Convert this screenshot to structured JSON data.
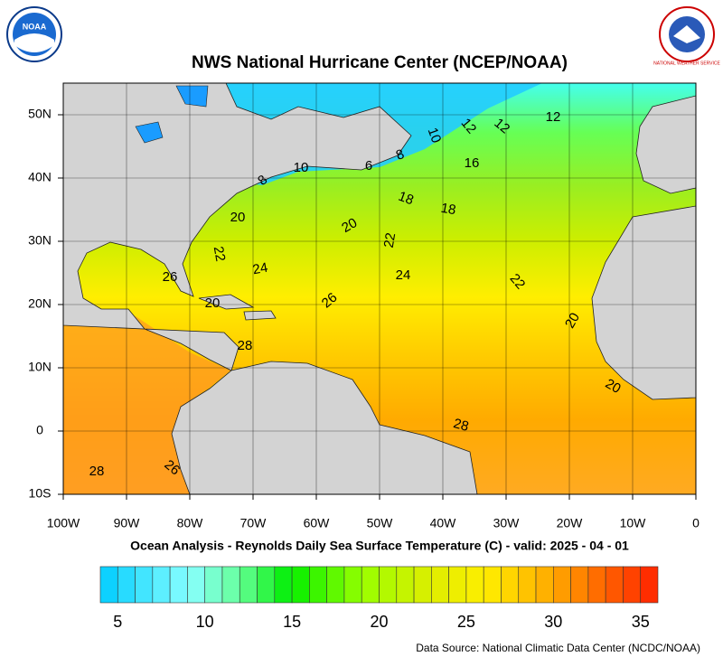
{
  "header": {
    "title": "NWS National Hurricane Center (NCEP/NOAA)",
    "logo_left": "NOAA",
    "logo_right": "NATIONAL WEATHER SERVICE"
  },
  "map": {
    "lon_labels": [
      "100W",
      "90W",
      "80W",
      "70W",
      "60W",
      "50W",
      "40W",
      "30W",
      "20W",
      "10W",
      "0"
    ],
    "lat_labels": [
      "50N",
      "40N",
      "30N",
      "20N",
      "10N",
      "0",
      "10S"
    ],
    "contour_labels": [
      "10",
      "12",
      "12",
      "12",
      "10",
      "6",
      "8",
      "8",
      "16",
      "18",
      "18",
      "20",
      "20",
      "22",
      "22",
      "24",
      "24",
      "22",
      "26",
      "26",
      "20",
      "28",
      "20",
      "28",
      "28",
      "26",
      "20"
    ]
  },
  "caption": "Ocean Analysis - Reynolds Daily Sea Surface Temperature (C) - valid: 2025 - 04 - 01",
  "colorbar": {
    "range": [
      4,
      36
    ],
    "labels": [
      5,
      10,
      15,
      20,
      25,
      30,
      35
    ]
  },
  "source": "Data Source: National Climatic Data Center (NCDC/NOAA)"
}
